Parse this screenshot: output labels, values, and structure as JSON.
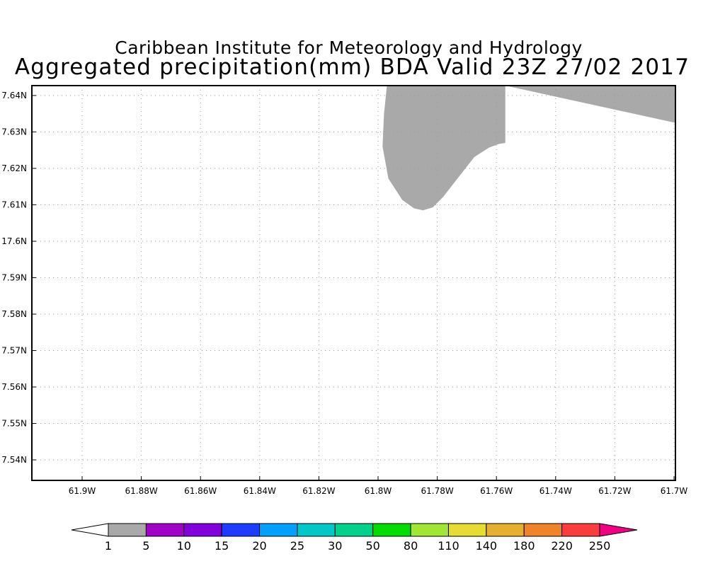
{
  "header": {
    "institution": "Caribbean Institute for Meteorology and Hydrology",
    "title": "Aggregated precipitation(mm) BDA Valid 23Z 27/02 2017"
  },
  "map": {
    "lat_ticks": [
      "7.64N",
      "7.63N",
      "7.62N",
      "7.61N",
      "17.6N",
      "7.59N",
      "7.58N",
      "7.57N",
      "7.56N",
      "7.55N",
      "7.54N"
    ],
    "lon_ticks": [
      "61.9W",
      "61.88W",
      "61.86W",
      "61.84W",
      "61.82W",
      "61.8W",
      "61.78W",
      "61.76W",
      "61.74W",
      "61.72W",
      "61.7W"
    ],
    "precip_region": {
      "category": "1-5",
      "color": "#a9a9a9",
      "boundary": [
        [
          -61.797,
          17.64
        ],
        [
          -61.798,
          17.635
        ],
        [
          -61.7985,
          17.626
        ],
        [
          -61.7965,
          17.6172
        ],
        [
          -61.7918,
          17.6113
        ],
        [
          -61.7878,
          17.609
        ],
        [
          -61.7848,
          17.6085
        ],
        [
          -61.7815,
          17.6093
        ],
        [
          -61.778,
          17.6122
        ],
        [
          -61.7728,
          17.6176
        ],
        [
          -61.7675,
          17.6231
        ],
        [
          -61.7625,
          17.6257
        ],
        [
          -61.7592,
          17.6267
        ],
        [
          -61.757,
          17.627
        ],
        [
          -61.757,
          17.64
        ]
      ]
    }
  },
  "colorbar": {
    "labels": [
      "1",
      "5",
      "10",
      "15",
      "20",
      "25",
      "30",
      "50",
      "80",
      "110",
      "140",
      "180",
      "220",
      "250"
    ],
    "colors": [
      "#a9a9a9",
      "#a000c8",
      "#8200dc",
      "#1e3cff",
      "#00a0ff",
      "#00c8c8",
      "#00d28c",
      "#00dc00",
      "#a0e632",
      "#e6dc32",
      "#e6af2d",
      "#f08228",
      "#fa3c3c"
    ],
    "under_color": "#ffffff",
    "over_color": "#f00082"
  }
}
